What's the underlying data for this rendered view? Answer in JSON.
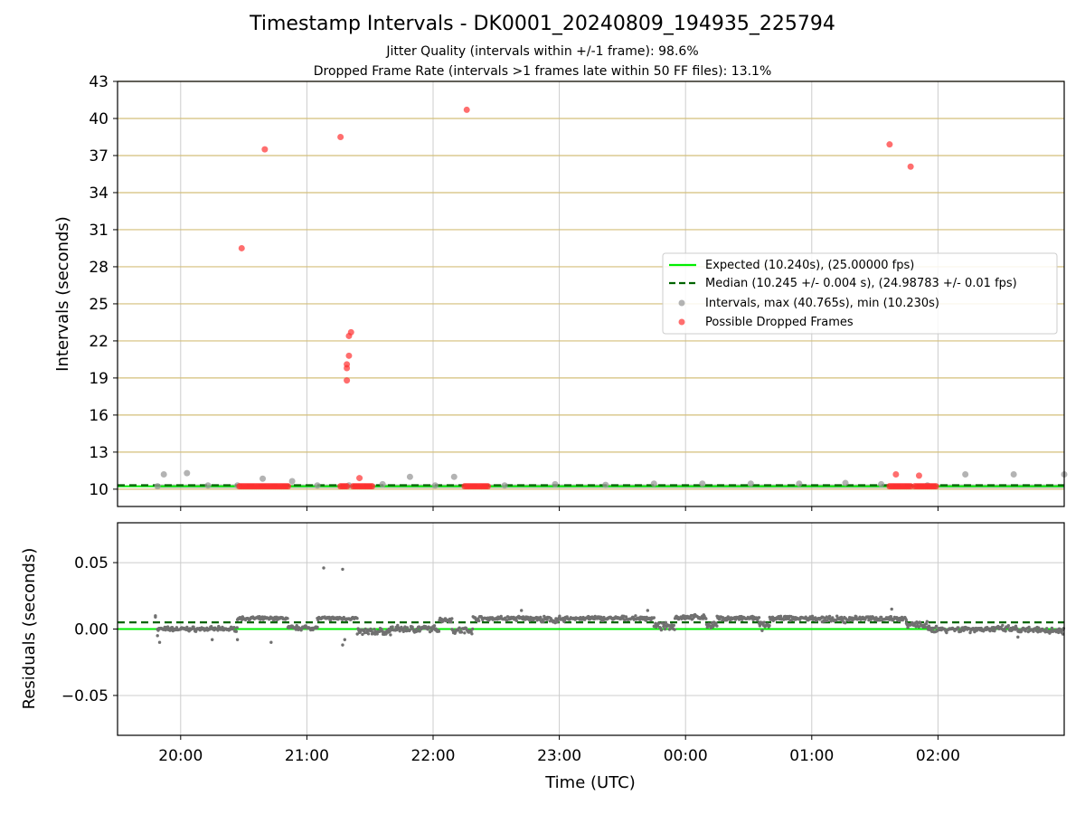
{
  "title": "Timestamp Intervals - DK0001_20240809_194935_225794",
  "subtitle_jitter": "Jitter Quality (intervals within +/-1 frame): 98.6%",
  "subtitle_dropped": "Dropped Frame Rate (intervals >1 frames late within 50 FF files): 13.1%",
  "colors": {
    "expected": "#00ee00",
    "median": "#006400",
    "intervals": "#999999",
    "dropped": "#ff3030",
    "residual": "#707070",
    "hgrid_top": "#d4bf7a",
    "grid": "#cccccc"
  },
  "chart_data": [
    {
      "type": "scatter",
      "ylabel": "Intervals (seconds)",
      "ylim": [
        8.6,
        43
      ],
      "yticks": [
        10,
        13,
        16,
        19,
        22,
        25,
        28,
        31,
        34,
        37,
        40,
        43
      ],
      "grid": true,
      "legend_position": "center-right",
      "expected_value": 10.24,
      "median_value": 10.245,
      "legend": [
        "Expected (10.240s), (25.00000 fps)",
        "Median (10.245 +/- 0.004 s), (24.98783 +/- 0.01 fps)",
        "Intervals, max (40.765s), min (10.230s)",
        "Possible Dropped Frames"
      ],
      "series": [
        {
          "name": "Intervals, max (40.765s), min (10.230s)",
          "points": [
            [
              "19:49",
              10.24
            ],
            [
              "19:52",
              11.2
            ],
            [
              "20:03",
              11.3
            ],
            [
              "20:13",
              10.3
            ],
            [
              "20:27",
              10.3
            ],
            [
              "20:39",
              10.85
            ],
            [
              "20:53",
              10.65
            ],
            [
              "21:05",
              10.3
            ],
            [
              "21:20",
              10.3
            ],
            [
              "21:36",
              10.4
            ],
            [
              "21:49",
              11.0
            ],
            [
              "22:01",
              10.3
            ],
            [
              "22:10",
              11.0
            ],
            [
              "22:34",
              10.3
            ],
            [
              "22:58",
              10.4
            ],
            [
              "23:22",
              10.35
            ],
            [
              "23:45",
              10.45
            ],
            [
              "00:08",
              10.45
            ],
            [
              "00:31",
              10.45
            ],
            [
              "00:54",
              10.45
            ],
            [
              "01:16",
              10.5
            ],
            [
              "01:33",
              10.4
            ],
            [
              "01:55",
              10.3
            ],
            [
              "02:13",
              11.2
            ],
            [
              "02:36",
              11.2
            ],
            [
              "03:00",
              11.2
            ]
          ]
        },
        {
          "name": "Possible Dropped Frames",
          "points": [
            [
              "20:29",
              29.5
            ],
            [
              "20:40",
              37.5
            ],
            [
              "21:16",
              38.5
            ],
            [
              "21:19",
              18.8
            ],
            [
              "21:19",
              19.8
            ],
            [
              "21:19",
              20.1
            ],
            [
              "21:20",
              20.8
            ],
            [
              "21:20",
              22.4
            ],
            [
              "21:21",
              22.7
            ],
            [
              "21:25",
              10.9
            ],
            [
              "22:16",
              40.7
            ],
            [
              "01:37",
              37.9
            ],
            [
              "01:47",
              36.1
            ],
            [
              "01:40",
              11.2
            ],
            [
              "01:51",
              11.1
            ]
          ],
          "dense_runs_at_10_24": [
            [
              "20:28",
              "20:51"
            ],
            [
              "21:16",
              "21:19"
            ],
            [
              "21:22",
              "21:31"
            ],
            [
              "22:15",
              "22:26"
            ],
            [
              "01:37",
              "01:47"
            ],
            [
              "01:49",
              "01:59"
            ]
          ]
        }
      ]
    },
    {
      "type": "scatter",
      "xlabel": "Time (UTC)",
      "ylabel": "Residuals (seconds)",
      "ylim": [
        -0.08,
        0.08
      ],
      "yticks": [
        -0.05,
        0.0,
        0.05
      ],
      "ytick_labels": [
        "−0.05",
        "0.00",
        "0.05"
      ],
      "x_start": "2024-08-09 19:30",
      "x_end": "2024-08-10 03:00",
      "xticks": [
        "20:00",
        "21:00",
        "22:00",
        "23:00",
        "00:00",
        "01:00",
        "02:00"
      ],
      "grid": true,
      "expected_value": 0.0,
      "median_value": 0.005,
      "series": [
        {
          "name": "Residuals",
          "segments": [
            {
              "from": "19:49",
              "to": "20:27",
              "level": 0.0,
              "spread": 0.002
            },
            {
              "from": "20:27",
              "to": "20:51",
              "level": 0.008,
              "spread": 0.0015
            },
            {
              "from": "20:51",
              "to": "21:05",
              "level": 0.001,
              "spread": 0.002
            },
            {
              "from": "21:05",
              "to": "21:24",
              "level": 0.008,
              "spread": 0.0015
            },
            {
              "from": "21:24",
              "to": "21:40",
              "level": -0.002,
              "spread": 0.003
            },
            {
              "from": "21:40",
              "to": "22:03",
              "level": 0.0,
              "spread": 0.003
            },
            {
              "from": "22:03",
              "to": "22:09",
              "level": 0.007,
              "spread": 0.002
            },
            {
              "from": "22:09",
              "to": "22:19",
              "level": -0.001,
              "spread": 0.003
            },
            {
              "from": "22:19",
              "to": "22:50",
              "level": 0.008,
              "spread": 0.002
            },
            {
              "from": "22:50",
              "to": "23:03",
              "level": 0.007,
              "spread": 0.003
            },
            {
              "from": "23:03",
              "to": "23:45",
              "level": 0.008,
              "spread": 0.002
            },
            {
              "from": "23:45",
              "to": "23:55",
              "level": 0.002,
              "spread": 0.003
            },
            {
              "from": "23:55",
              "to": "00:10",
              "level": 0.009,
              "spread": 0.002
            },
            {
              "from": "00:10",
              "to": "00:15",
              "level": 0.003,
              "spread": 0.003
            },
            {
              "from": "00:15",
              "to": "00:35",
              "level": 0.008,
              "spread": 0.002
            },
            {
              "from": "00:35",
              "to": "00:40",
              "level": 0.002,
              "spread": 0.004
            },
            {
              "from": "00:40",
              "to": "01:05",
              "level": 0.008,
              "spread": 0.002
            },
            {
              "from": "01:05",
              "to": "01:18",
              "level": 0.007,
              "spread": 0.003
            },
            {
              "from": "01:18",
              "to": "01:45",
              "level": 0.008,
              "spread": 0.002
            },
            {
              "from": "01:45",
              "to": "01:55",
              "level": 0.003,
              "spread": 0.003
            },
            {
              "from": "01:55",
              "to": "02:37",
              "level": 0.0,
              "spread": 0.003
            },
            {
              "from": "02:37",
              "to": "03:00",
              "level": -0.001,
              "spread": 0.003
            }
          ],
          "outliers": [
            [
              "19:48",
              0.009
            ],
            [
              "19:48",
              0.01
            ],
            [
              "19:49",
              -0.005
            ],
            [
              "19:50",
              -0.01
            ],
            [
              "20:15",
              -0.008
            ],
            [
              "20:27",
              -0.008
            ],
            [
              "20:43",
              -0.01
            ],
            [
              "21:08",
              0.046
            ],
            [
              "21:17",
              0.045
            ],
            [
              "21:17",
              -0.012
            ],
            [
              "21:18",
              -0.008
            ],
            [
              "22:42",
              0.014
            ],
            [
              "23:42",
              0.014
            ],
            [
              "01:38",
              0.015
            ],
            [
              "02:38",
              -0.006
            ]
          ]
        }
      ]
    }
  ]
}
